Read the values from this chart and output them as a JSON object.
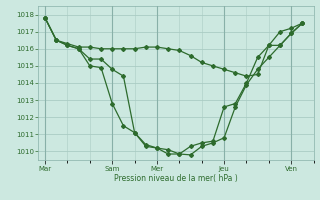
{
  "title": "",
  "xlabel": "Pression niveau de la mer( hPa )",
  "ylabel": "",
  "bg_color": "#cce8e0",
  "grid_color": "#aaccc4",
  "line_color": "#2d6b2d",
  "ylim": [
    1009.5,
    1018.5
  ],
  "xtick_labels": [
    "Mar",
    "Sam",
    "Mer",
    "Jeu",
    "Ven"
  ],
  "xtick_positions": [
    0,
    3,
    5,
    8,
    11
  ],
  "xlim": [
    -0.3,
    12.0
  ],
  "ytick_vals": [
    1010,
    1011,
    1012,
    1013,
    1014,
    1015,
    1016,
    1017,
    1018
  ],
  "series1_x": [
    0,
    0.5,
    1.0,
    1.5,
    2.0,
    2.5,
    3.0,
    3.5,
    4.0,
    4.5,
    5.0,
    5.5,
    6.0,
    6.5,
    7.0,
    7.5,
    8.0,
    8.5,
    9.0,
    9.5,
    10.0,
    10.5,
    11.0,
    11.5
  ],
  "series1_y": [
    1017.8,
    1016.5,
    1016.3,
    1016.1,
    1016.1,
    1016.0,
    1016.0,
    1016.0,
    1016.0,
    1016.1,
    1016.1,
    1016.0,
    1015.9,
    1015.6,
    1015.2,
    1015.0,
    1014.8,
    1014.6,
    1014.4,
    1014.5,
    1016.2,
    1017.0,
    1017.2,
    1017.5
  ],
  "series2_x": [
    0,
    0.5,
    1.0,
    1.5,
    2.0,
    2.5,
    3.0,
    3.5,
    4.0,
    4.5,
    5.0,
    5.5,
    6.0,
    6.5,
    7.0,
    7.5,
    8.0,
    8.5,
    9.0,
    9.5,
    10.0,
    10.5,
    11.0,
    11.5
  ],
  "series2_y": [
    1017.8,
    1016.5,
    1016.2,
    1016.0,
    1015.4,
    1015.4,
    1014.8,
    1014.4,
    1011.1,
    1010.3,
    1010.2,
    1010.1,
    1009.85,
    1009.8,
    1010.3,
    1010.5,
    1010.8,
    1012.6,
    1013.9,
    1014.8,
    1015.5,
    1016.2,
    1016.9,
    1017.5
  ],
  "series3_x": [
    0,
    0.5,
    1.0,
    1.5,
    2.0,
    2.5,
    3.0,
    3.5,
    4.0,
    4.5,
    5.0,
    5.5,
    6.0,
    6.5,
    7.0,
    7.5,
    8.0,
    8.5,
    9.0,
    9.5,
    10.0,
    10.5,
    11.0,
    11.5
  ],
  "series3_y": [
    1017.8,
    1016.5,
    1016.2,
    1016.0,
    1015.0,
    1014.9,
    1012.8,
    1011.5,
    1011.1,
    1010.4,
    1010.2,
    1009.85,
    1009.85,
    1010.3,
    1010.5,
    1010.6,
    1012.6,
    1012.8,
    1014.0,
    1015.5,
    1016.2,
    1016.2,
    1016.9,
    1017.5
  ]
}
